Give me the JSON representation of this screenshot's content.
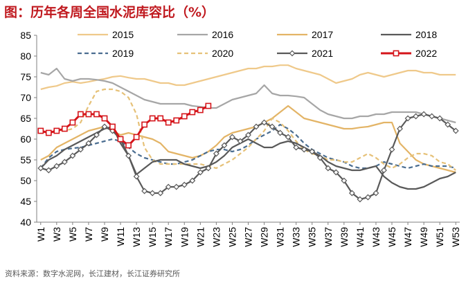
{
  "title": "图：历年各周全国水泥库容比（%）",
  "source": "资料来源：数字水泥网，长江建材，长江证券研究所",
  "chart_data": {
    "type": "line",
    "title": "图：历年各周全国水泥库容比（%）",
    "xlabel": "",
    "ylabel": "",
    "ylim": [
      40,
      85
    ],
    "yticks": [
      40,
      45,
      50,
      55,
      60,
      65,
      70,
      75,
      80,
      85
    ],
    "categories": [
      "W1",
      "W2",
      "W3",
      "W4",
      "W5",
      "W6",
      "W7",
      "W8",
      "W9",
      "W10",
      "W11",
      "W12",
      "W13",
      "W14",
      "W15",
      "W16",
      "W17",
      "W18",
      "W19",
      "W20",
      "W21",
      "W22",
      "W23",
      "W24",
      "W25",
      "W26",
      "W27",
      "W28",
      "W29",
      "W30",
      "W31",
      "W32",
      "W33",
      "W34",
      "W35",
      "W36",
      "W37",
      "W38",
      "W39",
      "W40",
      "W41",
      "W42",
      "W43",
      "W44",
      "W45",
      "W46",
      "W47",
      "W48",
      "W49",
      "W50",
      "W51",
      "W52",
      "W53"
    ],
    "xtick_labels": [
      "W1",
      "W3",
      "W5",
      "W7",
      "W9",
      "W11",
      "W13",
      "W15",
      "W17",
      "W19",
      "W21",
      "W23",
      "W25",
      "W27",
      "W29",
      "W31",
      "W33",
      "W35",
      "W37",
      "W39",
      "W41",
      "W43",
      "W45",
      "W47",
      "W49",
      "W51",
      "W53"
    ],
    "legend_position": "top",
    "series": [
      {
        "name": "2015",
        "color": "#efc98a",
        "style": "solid",
        "values": [
          72,
          72.5,
          72.8,
          73.5,
          73.8,
          73.5,
          73.8,
          74.2,
          74.5,
          75,
          75.2,
          74.8,
          74.5,
          74.5,
          74,
          73.5,
          73.5,
          73,
          73,
          73.5,
          74,
          74.5,
          75,
          75.5,
          76,
          76.5,
          77,
          77,
          77.5,
          77.5,
          77.8,
          77.8,
          77,
          76.5,
          76,
          75.5,
          74.5,
          73.5,
          74,
          74.5,
          75.5,
          76,
          75.5,
          75,
          75.5,
          76,
          76.5,
          76.5,
          76,
          76,
          75.5,
          75.5,
          75.5
        ]
      },
      {
        "name": "2016",
        "color": "#a6a6a6",
        "style": "solid",
        "values": [
          76,
          75.5,
          77,
          74.5,
          74,
          74.5,
          74.5,
          74.3,
          74,
          73.5,
          72.5,
          71.5,
          70.5,
          69.5,
          69,
          68.5,
          68.5,
          68.5,
          68.5,
          68,
          67.8,
          67.5,
          67.5,
          68.5,
          69.5,
          70,
          70.5,
          71,
          73,
          71,
          70.5,
          70.5,
          70.3,
          70,
          68.5,
          67,
          66,
          65.5,
          65,
          65,
          65.5,
          65.5,
          66,
          66,
          66.5,
          66.5,
          66.5,
          66.5,
          66,
          65.5,
          65,
          64.5,
          64
        ]
      },
      {
        "name": "2017",
        "color": "#e3b466",
        "style": "solid",
        "values": [
          55,
          56,
          58,
          59,
          60,
          61,
          62,
          62.5,
          63,
          62,
          61,
          61.5,
          61,
          60.5,
          60,
          59,
          57,
          56.5,
          56,
          55.5,
          56,
          57,
          58.5,
          60.5,
          61.5,
          62,
          62.5,
          63,
          64,
          65,
          66.5,
          68,
          66.5,
          65,
          64.5,
          64,
          63.5,
          63,
          62.5,
          62.5,
          62.8,
          63,
          63.5,
          64,
          64,
          59,
          57,
          55,
          54,
          53.5,
          53,
          52.5,
          52
        ]
      },
      {
        "name": "2018",
        "color": "#595959",
        "style": "solid",
        "values": [
          53,
          55,
          56,
          57.5,
          58.5,
          59.5,
          60.5,
          61.5,
          62.5,
          63,
          59,
          56,
          51.5,
          53,
          54.5,
          55,
          55,
          55,
          54,
          53.5,
          53,
          53.5,
          54.5,
          56,
          58,
          59,
          60,
          59,
          58,
          58,
          59,
          59.5,
          59,
          58,
          57,
          56,
          54.5,
          53.5,
          53,
          52.5,
          52.5,
          53,
          53.5,
          51,
          49.5,
          48.5,
          48,
          48,
          48.5,
          49.5,
          50.5,
          51,
          52
        ]
      },
      {
        "name": "2019",
        "color": "#4a6d90",
        "style": "dashed",
        "values": [
          53,
          55.5,
          57,
          57.5,
          57.8,
          58,
          58.5,
          59,
          59.5,
          60,
          59.5,
          58,
          56.5,
          55.5,
          55,
          54.5,
          54,
          54,
          54.5,
          55,
          56,
          57,
          57.5,
          57.5,
          57,
          57.5,
          58.5,
          60,
          61,
          62,
          63.5,
          62.5,
          61,
          59,
          57.5,
          56.5,
          55.5,
          55,
          54.5,
          53.5,
          53,
          53,
          53.5,
          54.5,
          54,
          53.5,
          53,
          53.5,
          54,
          53.5,
          53.5,
          53.5,
          53
        ]
      },
      {
        "name": "2020",
        "color": "#e6c178",
        "style": "dashed",
        "values": [
          61.5,
          62,
          62,
          62,
          62.5,
          64,
          68,
          71.5,
          72,
          72,
          71.5,
          70,
          66,
          58,
          55,
          54,
          54,
          54,
          54,
          54,
          54,
          53.5,
          53,
          54,
          55,
          56.5,
          58,
          60,
          62,
          65,
          64,
          62,
          59.5,
          57.5,
          56.5,
          56,
          55,
          55,
          54.5,
          54.5,
          55.5,
          56.5,
          55.5,
          54,
          53,
          54,
          55.5,
          56.5,
          56.5,
          56,
          54.5,
          54,
          52.5
        ]
      },
      {
        "name": "2021",
        "color": "#595959",
        "style": "solid",
        "marker": "diamond",
        "values": [
          53,
          52.5,
          53.5,
          54.5,
          56,
          57.5,
          59,
          61,
          63,
          62,
          60,
          56,
          51,
          47.5,
          47,
          47,
          48.5,
          48.5,
          49,
          50,
          52,
          53,
          56.5,
          58.5,
          60.5,
          59.5,
          61,
          63,
          64,
          63,
          61.5,
          60.5,
          58,
          57.5,
          57,
          55.5,
          53,
          52,
          50,
          47,
          45.5,
          46,
          47,
          52.5,
          57.5,
          62.5,
          65,
          65.5,
          66,
          65.5,
          65,
          63.5,
          62
        ]
      },
      {
        "name": "2022",
        "color": "#d5141a",
        "style": "solid",
        "marker": "square",
        "values": [
          62,
          61.5,
          62,
          62.5,
          64,
          66,
          66,
          66,
          65,
          63,
          60,
          58.5,
          60.5,
          63.5,
          65,
          65,
          64,
          64.5,
          65.5,
          66.5,
          67,
          68,
          null,
          null,
          null,
          null,
          null,
          null,
          null,
          null,
          null,
          null,
          null,
          null,
          null,
          null,
          null,
          null,
          null,
          null,
          null,
          null,
          null,
          null,
          null,
          null,
          null,
          null,
          null,
          null,
          null,
          null,
          null
        ]
      }
    ]
  }
}
